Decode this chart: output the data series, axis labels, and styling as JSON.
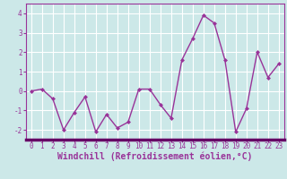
{
  "x": [
    0,
    1,
    2,
    3,
    4,
    5,
    6,
    7,
    8,
    9,
    10,
    11,
    12,
    13,
    14,
    15,
    16,
    17,
    18,
    19,
    20,
    21,
    22,
    23
  ],
  "y": [
    0.0,
    0.1,
    -0.4,
    -2.0,
    -1.1,
    -0.3,
    -2.1,
    -1.2,
    -1.9,
    -1.6,
    0.1,
    0.1,
    -0.7,
    -1.4,
    1.6,
    2.7,
    3.9,
    3.5,
    1.6,
    -2.1,
    -0.9,
    2.0,
    0.7,
    1.4
  ],
  "line_color": "#993399",
  "marker": "D",
  "markersize": 2.0,
  "linewidth": 1.0,
  "xlabel": "Windchill (Refroidissement éolien,°C)",
  "xlabel_fontsize": 7.0,
  "background_color": "#cce8e8",
  "grid_color": "#ffffff",
  "ylim": [
    -2.5,
    4.5
  ],
  "xlim": [
    -0.5,
    23.5
  ],
  "yticks": [
    -2,
    -1,
    0,
    1,
    2,
    3,
    4
  ],
  "xticks": [
    0,
    1,
    2,
    3,
    4,
    5,
    6,
    7,
    8,
    9,
    10,
    11,
    12,
    13,
    14,
    15,
    16,
    17,
    18,
    19,
    20,
    21,
    22,
    23
  ],
  "tick_fontsize": 5.5,
  "tick_color": "#993399",
  "spine_color": "#993399",
  "spine_bottom_color": "#660066"
}
